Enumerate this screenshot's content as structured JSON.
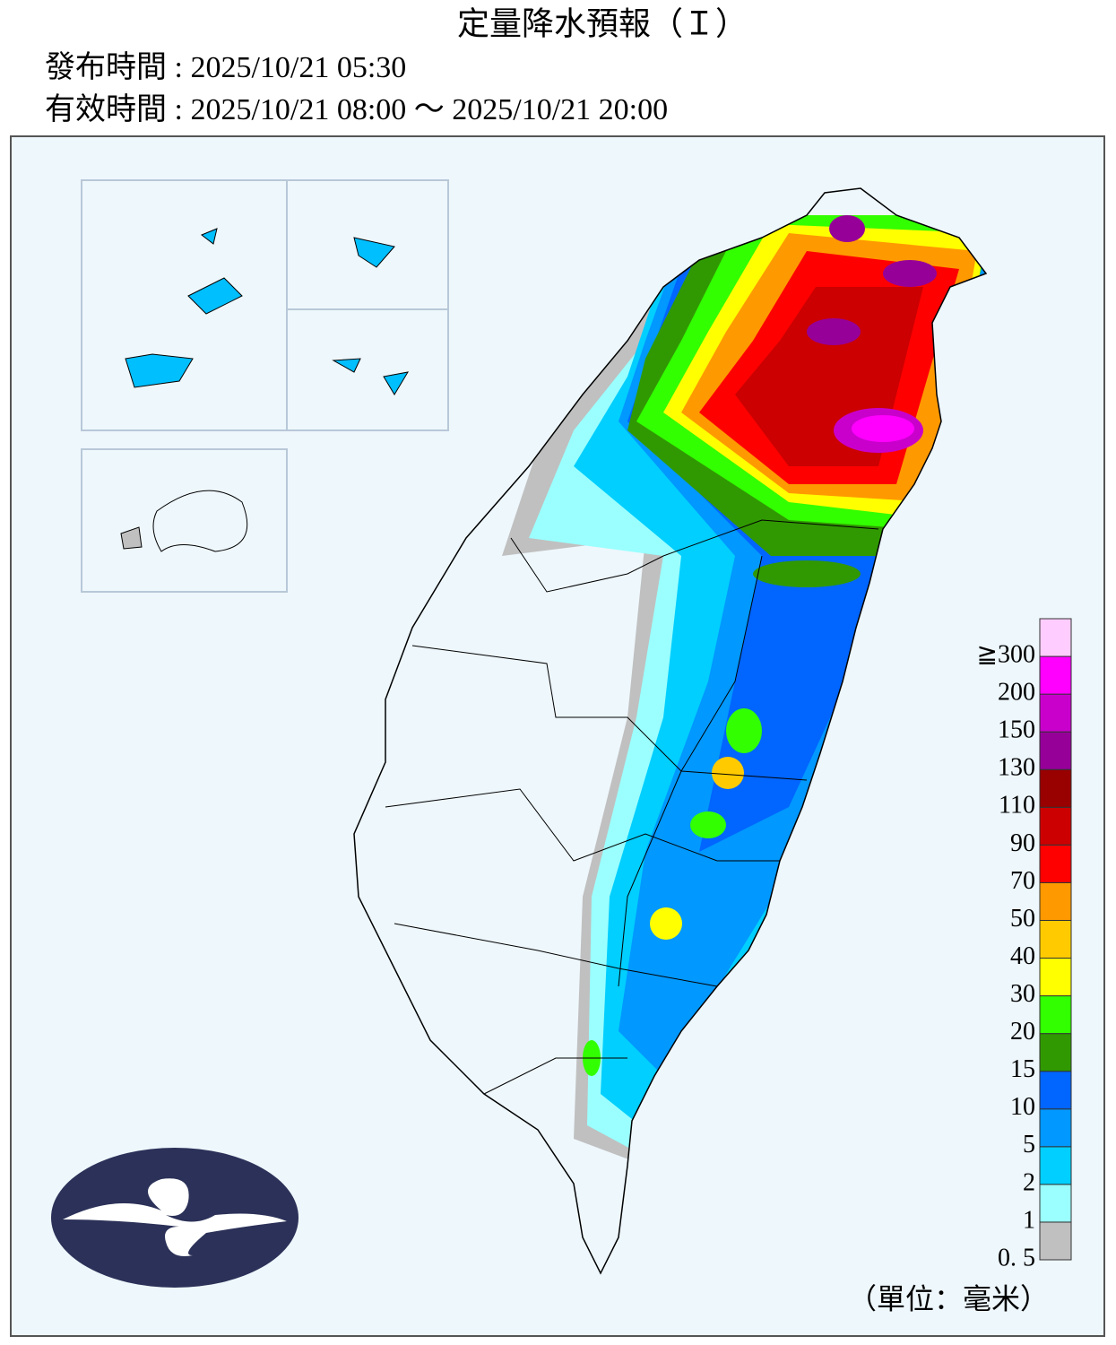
{
  "header": {
    "title": "定量降水預報（Ｉ）",
    "issued": "發布時間 : 2025/10/21 05:30",
    "valid": "有效時間 : 2025/10/21 08:00 ～ 2025/10/21 20:00"
  },
  "legend": {
    "unit": "（單位：毫米）",
    "levels": [
      {
        "label": "0. 5",
        "color": "#c0c0c0"
      },
      {
        "label": "1",
        "color": "#9bffff"
      },
      {
        "label": "2",
        "color": "#00cfff"
      },
      {
        "label": "5",
        "color": "#0198ff"
      },
      {
        "label": "10",
        "color": "#0165ff"
      },
      {
        "label": "15",
        "color": "#309901"
      },
      {
        "label": "20",
        "color": "#32ff00"
      },
      {
        "label": "30",
        "color": "#ffff00"
      },
      {
        "label": "40",
        "color": "#ffcb00"
      },
      {
        "label": "50",
        "color": "#ff9900"
      },
      {
        "label": "70",
        "color": "#ff0000"
      },
      {
        "label": "90",
        "color": "#cc0000"
      },
      {
        "label": "110",
        "color": "#990000"
      },
      {
        "label": "130",
        "color": "#960099"
      },
      {
        "label": "150",
        "color": "#c900cc"
      },
      {
        "label": "200",
        "color": "#ff00ff"
      },
      {
        "label": "≧300",
        "color": "#ffccff"
      }
    ]
  }
}
